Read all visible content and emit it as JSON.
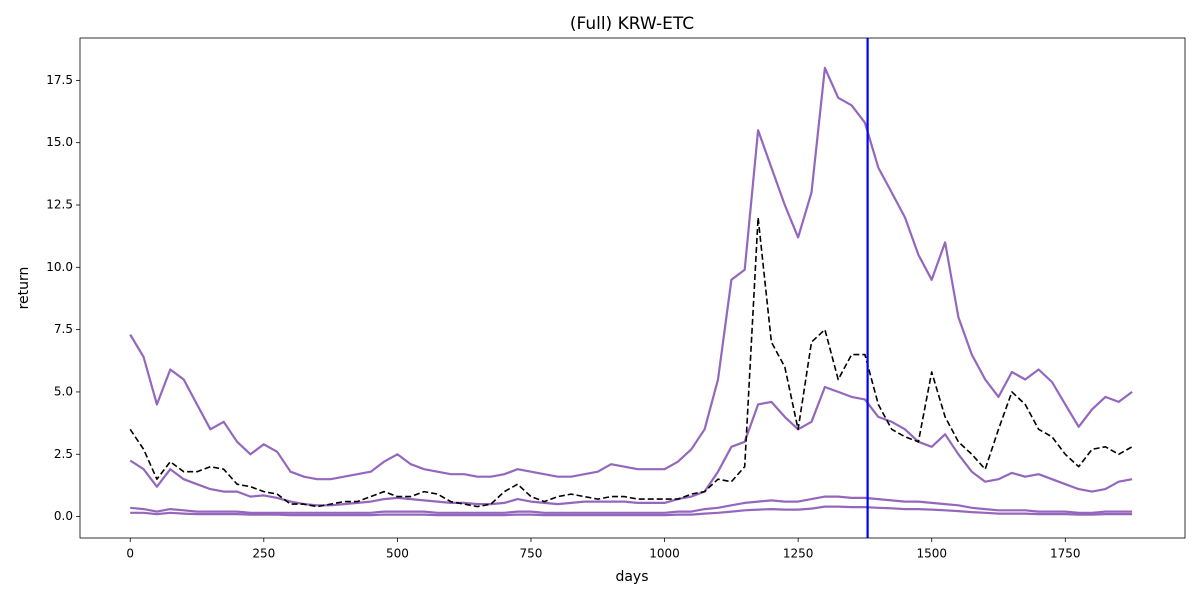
{
  "chart_data": {
    "type": "line",
    "title": "(Full) KRW-ETC",
    "xlabel": "days",
    "ylabel": "return",
    "x": [
      0,
      25,
      50,
      75,
      100,
      125,
      150,
      175,
      200,
      225,
      250,
      275,
      300,
      325,
      350,
      375,
      400,
      425,
      450,
      475,
      500,
      525,
      550,
      575,
      600,
      625,
      650,
      675,
      700,
      725,
      750,
      775,
      800,
      825,
      850,
      875,
      900,
      925,
      950,
      975,
      1000,
      1025,
      1050,
      1075,
      1100,
      1125,
      1150,
      1175,
      1200,
      1225,
      1250,
      1275,
      1300,
      1325,
      1350,
      1375,
      1400,
      1425,
      1450,
      1475,
      1500,
      1525,
      1550,
      1575,
      1600,
      1625,
      1650,
      1675,
      1700,
      1725,
      1750,
      1775,
      1800,
      1825,
      1850,
      1875
    ],
    "series": [
      {
        "color": "#9467bd",
        "dashed": false,
        "values": [
          7.3,
          6.4,
          4.5,
          5.9,
          5.5,
          4.5,
          3.5,
          3.8,
          3.0,
          2.5,
          2.9,
          2.6,
          1.8,
          1.6,
          1.5,
          1.5,
          1.6,
          1.7,
          1.8,
          2.2,
          2.5,
          2.1,
          1.9,
          1.8,
          1.7,
          1.7,
          1.6,
          1.6,
          1.7,
          1.9,
          1.8,
          1.7,
          1.6,
          1.6,
          1.7,
          1.8,
          2.1,
          2.0,
          1.9,
          1.9,
          1.9,
          2.2,
          2.7,
          3.5,
          5.5,
          9.5,
          9.9,
          15.5,
          14.0,
          12.5,
          11.2,
          13.0,
          18.0,
          16.8,
          16.5,
          15.8,
          14.0,
          13.0,
          12.0,
          10.5,
          9.5,
          11.0,
          8.0,
          6.5,
          5.5,
          4.8,
          5.8,
          5.5,
          5.9,
          5.4,
          4.5,
          3.6,
          4.3,
          4.8,
          4.6,
          5.0
        ]
      },
      {
        "color": "#9467bd",
        "dashed": false,
        "values": [
          2.25,
          1.9,
          1.2,
          1.9,
          1.5,
          1.3,
          1.1,
          1.0,
          1.0,
          0.8,
          0.85,
          0.75,
          0.6,
          0.5,
          0.45,
          0.45,
          0.5,
          0.55,
          0.6,
          0.7,
          0.75,
          0.7,
          0.65,
          0.6,
          0.55,
          0.55,
          0.5,
          0.5,
          0.55,
          0.7,
          0.6,
          0.55,
          0.5,
          0.55,
          0.6,
          0.6,
          0.6,
          0.6,
          0.55,
          0.55,
          0.55,
          0.7,
          0.8,
          1.0,
          1.8,
          2.8,
          3.0,
          4.5,
          4.6,
          4.0,
          3.5,
          3.8,
          5.2,
          5.0,
          4.8,
          4.7,
          4.0,
          3.8,
          3.5,
          3.0,
          2.8,
          3.3,
          2.5,
          1.8,
          1.4,
          1.5,
          1.75,
          1.6,
          1.7,
          1.5,
          1.3,
          1.1,
          1.0,
          1.1,
          1.4,
          1.5
        ]
      },
      {
        "color": "#9467bd",
        "dashed": false,
        "values": [
          0.35,
          0.3,
          0.2,
          0.3,
          0.25,
          0.2,
          0.2,
          0.2,
          0.2,
          0.15,
          0.15,
          0.15,
          0.15,
          0.15,
          0.15,
          0.15,
          0.15,
          0.15,
          0.15,
          0.2,
          0.2,
          0.2,
          0.2,
          0.15,
          0.15,
          0.15,
          0.15,
          0.15,
          0.15,
          0.2,
          0.2,
          0.15,
          0.15,
          0.15,
          0.15,
          0.15,
          0.15,
          0.15,
          0.15,
          0.15,
          0.15,
          0.2,
          0.2,
          0.3,
          0.35,
          0.45,
          0.55,
          0.6,
          0.65,
          0.6,
          0.6,
          0.7,
          0.8,
          0.8,
          0.75,
          0.75,
          0.7,
          0.65,
          0.6,
          0.6,
          0.55,
          0.5,
          0.45,
          0.35,
          0.3,
          0.25,
          0.25,
          0.25,
          0.2,
          0.2,
          0.2,
          0.15,
          0.15,
          0.2,
          0.2,
          0.2
        ]
      },
      {
        "color": "#9467bd",
        "dashed": false,
        "values": [
          0.15,
          0.15,
          0.1,
          0.15,
          0.12,
          0.1,
          0.1,
          0.1,
          0.1,
          0.08,
          0.08,
          0.08,
          0.06,
          0.06,
          0.06,
          0.06,
          0.06,
          0.06,
          0.06,
          0.08,
          0.08,
          0.08,
          0.08,
          0.06,
          0.06,
          0.06,
          0.06,
          0.06,
          0.06,
          0.08,
          0.08,
          0.06,
          0.06,
          0.06,
          0.06,
          0.06,
          0.06,
          0.06,
          0.06,
          0.06,
          0.06,
          0.08,
          0.08,
          0.12,
          0.15,
          0.2,
          0.25,
          0.28,
          0.3,
          0.28,
          0.28,
          0.32,
          0.4,
          0.4,
          0.38,
          0.38,
          0.35,
          0.33,
          0.3,
          0.3,
          0.28,
          0.25,
          0.22,
          0.18,
          0.15,
          0.12,
          0.12,
          0.12,
          0.1,
          0.1,
          0.1,
          0.08,
          0.08,
          0.1,
          0.1,
          0.1
        ]
      },
      {
        "color": "#000000",
        "dashed": true,
        "values": [
          3.5,
          2.7,
          1.5,
          2.2,
          1.8,
          1.8,
          2.0,
          1.9,
          1.3,
          1.2,
          1.0,
          0.9,
          0.5,
          0.5,
          0.4,
          0.5,
          0.6,
          0.6,
          0.8,
          1.0,
          0.8,
          0.8,
          1.0,
          0.9,
          0.6,
          0.5,
          0.4,
          0.5,
          1.0,
          1.3,
          0.8,
          0.6,
          0.8,
          0.9,
          0.8,
          0.7,
          0.8,
          0.8,
          0.7,
          0.7,
          0.7,
          0.7,
          0.9,
          1.0,
          1.5,
          1.4,
          2.0,
          12.0,
          7.0,
          6.0,
          3.5,
          7.0,
          7.5,
          5.5,
          6.5,
          6.5,
          4.5,
          3.5,
          3.2,
          3.0,
          5.8,
          4.0,
          3.0,
          2.5,
          1.9,
          3.5,
          5.0,
          4.5,
          3.5,
          3.2,
          2.5,
          2.0,
          2.7,
          2.8,
          2.5,
          2.8
        ]
      }
    ],
    "vline": {
      "x": 1380,
      "color": "#0000ff"
    },
    "xlim": [
      -94,
      1974
    ],
    "ylim": [
      -0.86,
      19.2
    ],
    "xticks": [
      0,
      250,
      500,
      750,
      1000,
      1250,
      1500,
      1750
    ],
    "yticks": [
      {
        "value": 0,
        "label": "0.0"
      },
      2.5,
      {
        "value": 5,
        "label": "5.0"
      },
      7.5,
      {
        "value": 10,
        "label": "10.0"
      },
      12.5,
      {
        "value": 15,
        "label": "15.0"
      },
      17.5
    ],
    "grid": false
  }
}
